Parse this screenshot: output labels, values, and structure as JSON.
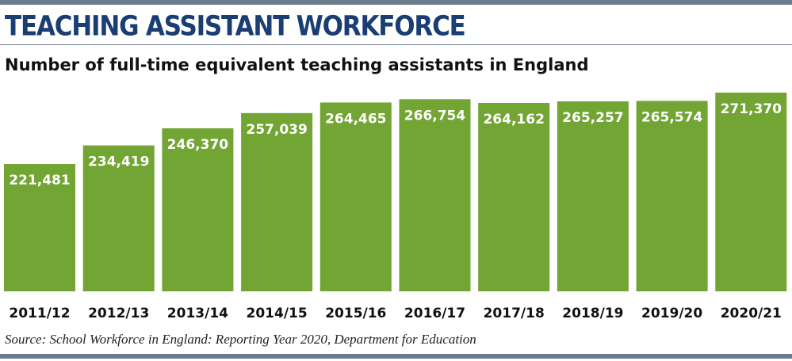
{
  "headline": "TEACHING ASSISTANT WORKFORCE",
  "source": "Source: School Workforce in England: Reporting Year 2020, Department for Education",
  "colors": {
    "bar": "#72a533",
    "headline": "#1a3e73",
    "rule": "#6d7b8e",
    "bar_label": "#ffffff"
  },
  "chart_data": {
    "type": "bar",
    "title": "Number of full-time equivalent teaching assistants in England",
    "xlabel": "",
    "ylabel": "",
    "categories": [
      "2011/12",
      "2012/13",
      "2013/14",
      "2014/15",
      "2015/16",
      "2016/17",
      "2017/18",
      "2018/19",
      "2019/20",
      "2020/21"
    ],
    "values": [
      221481,
      234419,
      246370,
      257039,
      264465,
      266754,
      264162,
      265257,
      265574,
      271370
    ],
    "value_labels": [
      "221,481",
      "234,419",
      "246,370",
      "257,039",
      "264,465",
      "266,754",
      "264,162",
      "265,257",
      "265,574",
      "271,370"
    ],
    "ylim": [
      0,
      271370
    ],
    "grid": false,
    "legend": "none"
  }
}
